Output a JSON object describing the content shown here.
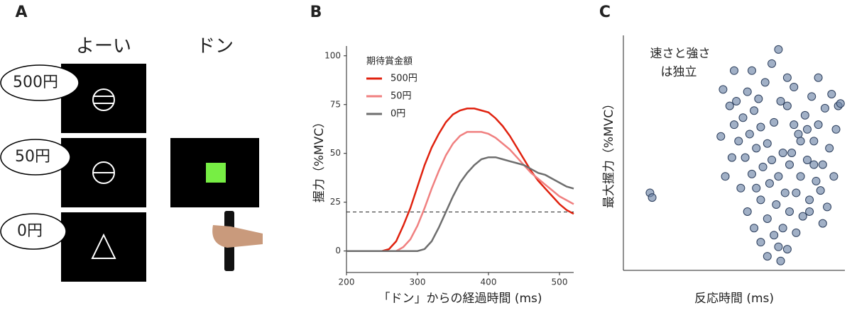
{
  "panel_a": {
    "label": "A",
    "ready": "よーい",
    "go": "ドン",
    "cues": [
      "500円",
      "50円",
      "0円"
    ]
  },
  "chart_data": [
    {
      "type": "line",
      "panel_label": "B",
      "xlabel": "「ドン」からの経過時間 (ms)",
      "ylabel": "握力（%MVC）",
      "legend_title": "期待賞金額",
      "legend": "upper left",
      "x": [
        200,
        210,
        220,
        230,
        240,
        250,
        260,
        270,
        280,
        290,
        300,
        310,
        320,
        330,
        340,
        350,
        360,
        370,
        380,
        390,
        400,
        410,
        420,
        430,
        440,
        450,
        460,
        470,
        480,
        490,
        500,
        510,
        520
      ],
      "series": [
        {
          "name": "500円",
          "color": "#e0220f",
          "values": [
            0,
            0,
            0,
            0,
            0,
            0,
            1,
            5,
            13,
            22,
            33,
            44,
            53,
            60,
            66,
            70,
            72,
            73,
            73,
            72,
            71,
            68,
            64,
            59,
            53,
            47,
            41,
            36,
            32,
            28,
            24,
            21,
            19
          ]
        },
        {
          "name": "50円",
          "color": "#f08080",
          "values": [
            0,
            0,
            0,
            0,
            0,
            0,
            0,
            0,
            2,
            6,
            13,
            22,
            32,
            41,
            49,
            55,
            59,
            61,
            61,
            61,
            60,
            58,
            55,
            52,
            48,
            44,
            40,
            37,
            34,
            31,
            28,
            26,
            24
          ]
        },
        {
          "name": "0円",
          "color": "#6e6e6e",
          "values": [
            0,
            0,
            0,
            0,
            0,
            0,
            0,
            0,
            0,
            0,
            0,
            1,
            5,
            12,
            20,
            28,
            35,
            40,
            44,
            47,
            48,
            48,
            47,
            46,
            45,
            44,
            42,
            40,
            39,
            37,
            35,
            33,
            32
          ]
        }
      ],
      "hline": 20,
      "xlim": [
        200,
        520
      ],
      "xticks": [
        200,
        300,
        400,
        500
      ],
      "ylim": [
        -11,
        105
      ],
      "yticks": [
        0,
        25,
        50,
        75,
        100
      ]
    },
    {
      "type": "scatter",
      "panel_label": "C",
      "xlabel": "反応時間 (ms)",
      "ylabel": "最大握力（%MVC）",
      "annotation": [
        "速さと強さ",
        "は独立"
      ],
      "color": "#6f86a8",
      "xlim": [
        0,
        100
      ],
      "ylim": [
        0,
        100
      ],
      "x": [
        12,
        13,
        45,
        48,
        50,
        52,
        55,
        58,
        60,
        62,
        65,
        68,
        70,
        72,
        75,
        78,
        80,
        83,
        86,
        88,
        91,
        94,
        97,
        96,
        93,
        90,
        87,
        84,
        81,
        78,
        74,
        71,
        69,
        66,
        63,
        60,
        57,
        54,
        51,
        49,
        46,
        44,
        56,
        59,
        62,
        65,
        67,
        70,
        73,
        76,
        79,
        82,
        85,
        88,
        67,
        70,
        64,
        61,
        74,
        77,
        80,
        83,
        86,
        89,
        92,
        95,
        98,
        53,
        56,
        59,
        62,
        65,
        72,
        75,
        68,
        71,
        74,
        77,
        58,
        50,
        84,
        90
      ],
      "y": [
        33,
        31,
        77,
        70,
        62,
        55,
        48,
        41,
        35,
        30,
        22,
        15,
        10,
        18,
        25,
        33,
        40,
        47,
        55,
        62,
        69,
        75,
        70,
        60,
        52,
        45,
        38,
        30,
        23,
        16,
        9,
        4,
        28,
        37,
        44,
        52,
        58,
        65,
        72,
        48,
        40,
        57,
        76,
        68,
        61,
        54,
        47,
        40,
        33,
        50,
        58,
        66,
        74,
        82,
        88,
        94,
        80,
        73,
        70,
        62,
        55,
        60,
        45,
        34,
        27,
        40,
        71,
        35,
        25,
        18,
        12,
        6,
        50,
        45,
        63,
        72,
        82,
        78,
        85,
        85,
        25,
        20
      ]
    }
  ]
}
